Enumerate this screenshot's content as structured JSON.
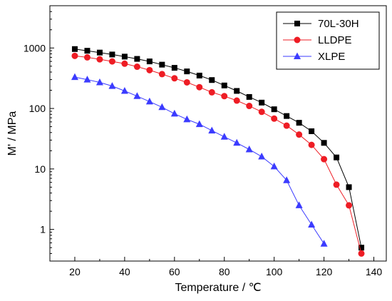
{
  "chart_data": {
    "type": "scatter",
    "xlabel": "Temperature / ℃",
    "ylabel": "M' / MPa",
    "xlim": [
      10,
      145
    ],
    "ylim": [
      0.3,
      5000
    ],
    "y_scale": "log",
    "x_ticks": [
      "20",
      "40",
      "60",
      "80",
      "100",
      "120",
      "140"
    ],
    "x_tick_values": [
      20,
      40,
      60,
      80,
      100,
      120,
      140
    ],
    "y_ticks": [
      "1",
      "10",
      "100",
      "1000"
    ],
    "y_tick_values": [
      1,
      10,
      100,
      1000
    ],
    "grid": false,
    "legend_position": "top-right",
    "series": [
      {
        "name": "70L-30H",
        "marker": "square",
        "color": "#000000",
        "line_color": "#000000",
        "x": [
          20,
          25,
          30,
          35,
          40,
          45,
          50,
          55,
          60,
          65,
          70,
          75,
          80,
          85,
          90,
          95,
          100,
          105,
          110,
          115,
          120,
          125,
          130,
          135
        ],
        "y": [
          960,
          900,
          840,
          780,
          720,
          660,
          600,
          530,
          470,
          410,
          350,
          295,
          240,
          195,
          155,
          125,
          97,
          75,
          58,
          42,
          27,
          15.5,
          5,
          0.5
        ]
      },
      {
        "name": "LLDPE",
        "marker": "circle",
        "color": "#ee1c24",
        "line_color": "#ee1c24",
        "x": [
          20,
          25,
          30,
          35,
          40,
          45,
          50,
          55,
          60,
          65,
          70,
          75,
          80,
          85,
          90,
          95,
          100,
          105,
          110,
          115,
          120,
          125,
          130,
          135
        ],
        "y": [
          740,
          700,
          650,
          600,
          550,
          490,
          430,
          370,
          315,
          270,
          225,
          185,
          160,
          135,
          110,
          88,
          68,
          52,
          37,
          25,
          14.5,
          5.5,
          2.5,
          0.4
        ]
      },
      {
        "name": "XLPE",
        "marker": "triangle",
        "color": "#3b3bff",
        "line_color": "#3b3bff",
        "x": [
          20,
          25,
          30,
          35,
          40,
          45,
          50,
          55,
          60,
          65,
          70,
          75,
          80,
          85,
          90,
          95,
          100,
          105,
          110,
          115,
          120
        ],
        "y": [
          330,
          300,
          270,
          235,
          195,
          160,
          130,
          105,
          82,
          66,
          55,
          43,
          34,
          27,
          21,
          16,
          11,
          6.5,
          2.5,
          1.2,
          0.58
        ]
      }
    ]
  }
}
